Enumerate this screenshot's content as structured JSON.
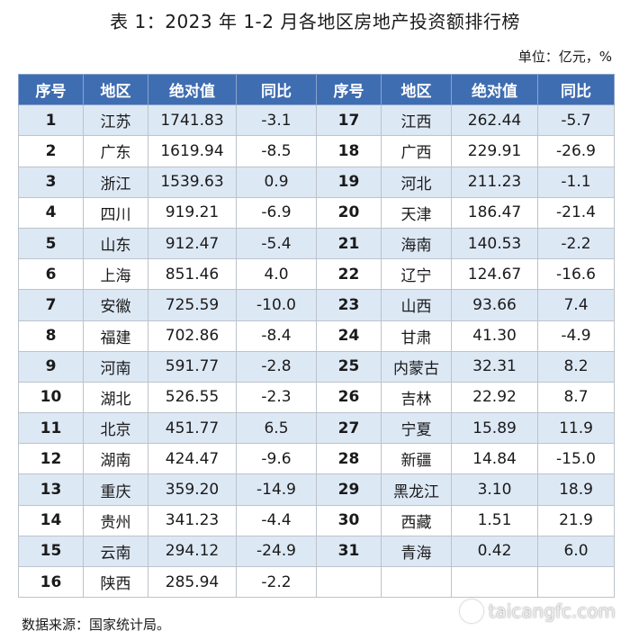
{
  "title": "表 1：2023 年 1-2 月各地区房地产投资额排行榜",
  "unit": "单位：亿元，%",
  "headers": [
    "序号",
    "地区",
    "绝对值",
    "同比",
    "序号",
    "地区",
    "绝对值",
    "同比"
  ],
  "rows": [
    [
      "1",
      "江苏",
      "1741.83",
      "-3.1",
      "17",
      "江西",
      "262.44",
      "-5.7"
    ],
    [
      "2",
      "广东",
      "1619.94",
      "-8.5",
      "18",
      "广西",
      "229.91",
      "-26.9"
    ],
    [
      "3",
      "浙江",
      "1539.63",
      "0.9",
      "19",
      "河北",
      "211.23",
      "-1.1"
    ],
    [
      "4",
      "四川",
      "919.21",
      "-6.9",
      "20",
      "天津",
      "186.47",
      "-21.4"
    ],
    [
      "5",
      "山东",
      "912.47",
      "-5.4",
      "21",
      "海南",
      "140.53",
      "-2.2"
    ],
    [
      "6",
      "上海",
      "851.46",
      "4.0",
      "22",
      "辽宁",
      "124.67",
      "-16.6"
    ],
    [
      "7",
      "安徽",
      "725.59",
      "-10.0",
      "23",
      "山西",
      "93.66",
      "7.4"
    ],
    [
      "8",
      "福建",
      "702.86",
      "-8.4",
      "24",
      "甘肃",
      "41.30",
      "-4.9"
    ],
    [
      "9",
      "河南",
      "591.77",
      "-2.8",
      "25",
      "内蒙古",
      "32.31",
      "8.2"
    ],
    [
      "10",
      "湖北",
      "526.55",
      "-2.3",
      "26",
      "吉林",
      "22.92",
      "8.7"
    ],
    [
      "11",
      "北京",
      "451.77",
      "6.5",
      "27",
      "宁夏",
      "15.89",
      "11.9"
    ],
    [
      "12",
      "湖南",
      "424.47",
      "-9.6",
      "28",
      "新疆",
      "14.84",
      "-15.0"
    ],
    [
      "13",
      "重庆",
      "359.20",
      "-14.9",
      "29",
      "黑龙江",
      "3.10",
      "18.9"
    ],
    [
      "14",
      "贵州",
      "341.23",
      "-4.4",
      "30",
      "西藏",
      "1.51",
      "21.9"
    ],
    [
      "15",
      "云南",
      "294.12",
      "-24.9",
      "31",
      "青海",
      "0.42",
      "6.0"
    ],
    [
      "16",
      "陕西",
      "285.94",
      "-2.2",
      "",
      "",
      "",
      ""
    ]
  ],
  "source": "数据来源：国家统计局。",
  "watermark": "taicangfc.com",
  "colors": {
    "header_bg": "#3f6db1",
    "stripe_bg": "#dde8f5"
  }
}
